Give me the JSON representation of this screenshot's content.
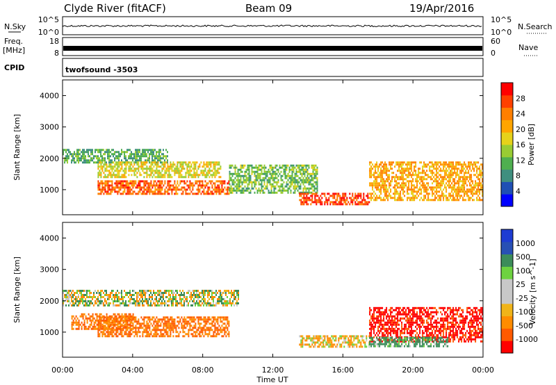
{
  "header": {
    "station": "Clyde River (fitACF)",
    "beam": "Beam 09",
    "date": "19/Apr/2016"
  },
  "noise_panel": {
    "left_label": "N.Sky",
    "right_label": "N.Search",
    "left_ticks": [
      "10^5",
      "10^0"
    ],
    "right_ticks": [
      "10^5",
      "10^0"
    ]
  },
  "freq_panel": {
    "left_label_1": "Freq.",
    "left_label_2": "[MHz]",
    "right_label": "Nave",
    "left_ticks": [
      "18",
      "8"
    ],
    "right_ticks": [
      "60",
      "0"
    ]
  },
  "cpid": {
    "label": "CPID",
    "value": "twofsound -3503"
  },
  "time_axis": {
    "label": "Time UT",
    "ticks": [
      "00:00",
      "04:00",
      "08:00",
      "12:00",
      "16:00",
      "20:00",
      "00:00"
    ]
  },
  "colors": {
    "power": [
      "#0000ff",
      "#1f4fb4",
      "#3f8f7f",
      "#4faf4f",
      "#99cc33",
      "#e6d21a",
      "#ffa500",
      "#ff7f00",
      "#ff4000",
      "#ff0000"
    ],
    "velocity": [
      "#ff0000",
      "#ff5a00",
      "#ff8c00",
      "#f0b419",
      "#c8c8c8",
      "#c8c8c8",
      "#6ed240",
      "#3c8c5a",
      "#2850b4",
      "#1e3cd2"
    ]
  },
  "chart_data": [
    {
      "type": "heatmap",
      "title": "",
      "xlabel": "",
      "ylabel": "Slant Range [km]",
      "xlim": [
        0,
        24
      ],
      "ylim": [
        200,
        4500
      ],
      "yticks": [
        "1000",
        "2000",
        "3000",
        "4000"
      ],
      "colorbar": {
        "label": "Power [dB]",
        "ticks": [
          "28",
          "24",
          "20",
          "16",
          "12",
          "8",
          "4"
        ],
        "range": [
          0,
          30
        ]
      },
      "echo_bands": [
        {
          "t_start": 0.0,
          "t_end": 6.0,
          "range_km": [
            1900,
            2300
          ],
          "value": 10
        },
        {
          "t_start": 2.0,
          "t_end": 9.0,
          "range_km": [
            1400,
            1900
          ],
          "value": 16
        },
        {
          "t_start": 2.0,
          "t_end": 9.5,
          "range_km": [
            850,
            1300
          ],
          "value": 24
        },
        {
          "t_start": 9.5,
          "t_end": 14.5,
          "range_km": [
            900,
            1800
          ],
          "value": 12
        },
        {
          "t_start": 13.5,
          "t_end": 17.5,
          "range_km": [
            550,
            900
          ],
          "value": 26
        },
        {
          "t_start": 17.5,
          "t_end": 24.0,
          "range_km": [
            700,
            1900
          ],
          "value": 20
        }
      ]
    },
    {
      "type": "heatmap",
      "title": "",
      "xlabel": "Time UT",
      "ylabel": "Slant Range [km]",
      "xlim": [
        0,
        24
      ],
      "ylim": [
        200,
        4500
      ],
      "yticks": [
        "1000",
        "2000",
        "3000",
        "4000"
      ],
      "colorbar": {
        "label": "Velocity [m s^-1]",
        "ticks": [
          "1000",
          "500",
          "100",
          "25",
          "-25",
          "-100",
          "-500",
          "-1000"
        ],
        "range": [
          -1000,
          1000
        ]
      },
      "echo_bands": [
        {
          "t_start": 0.0,
          "t_end": 10.0,
          "range_km": [
            1850,
            2350
          ],
          "value": 0
        },
        {
          "t_start": 2.0,
          "t_end": 9.5,
          "range_km": [
            850,
            1500
          ],
          "value": -300
        },
        {
          "t_start": 0.5,
          "t_end": 4.0,
          "range_km": [
            1100,
            1600
          ],
          "value": -300
        },
        {
          "t_start": 13.5,
          "t_end": 17.5,
          "range_km": [
            550,
            900
          ],
          "value": -100
        },
        {
          "t_start": 17.5,
          "t_end": 24.0,
          "range_km": [
            700,
            1800
          ],
          "value": -600
        },
        {
          "t_start": 17.5,
          "t_end": 22.0,
          "range_km": [
            550,
            850
          ],
          "value": 200
        }
      ]
    }
  ]
}
